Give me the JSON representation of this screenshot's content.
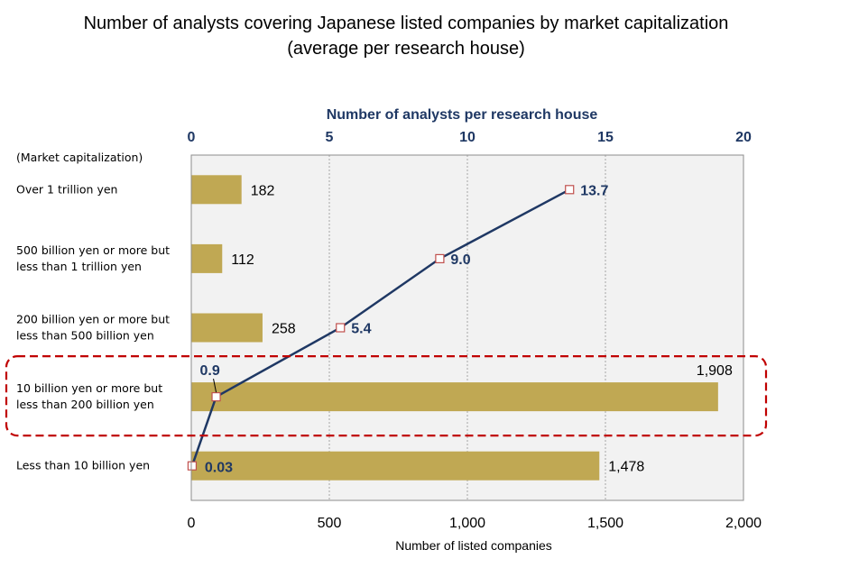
{
  "chart_data": {
    "type": "bar",
    "orientation": "horizontal",
    "title": "Number of analysts covering Japanese listed companies by market capitalization",
    "subtitle": "(average per research house)",
    "category_axis_label": "(Market capitalization)",
    "categories": [
      [
        "Over 1 trillion yen"
      ],
      [
        "500 billion yen or more but",
        "less than 1 trillion yen"
      ],
      [
        "200 billion yen or more but",
        "less than 500 billion yen"
      ],
      [
        "10 billion yen or more but",
        "less than 200 billion yen"
      ],
      [
        "Less than 10 billion yen"
      ]
    ],
    "bars": {
      "name": "Number of listed companies",
      "values": [
        182,
        112,
        258,
        1908,
        1478
      ],
      "labels": [
        "182",
        "112",
        "258",
        "1,908",
        "1,478"
      ],
      "color": "#c0a853"
    },
    "line": {
      "name": "Number of analysts per research house",
      "values": [
        13.7,
        9.0,
        5.4,
        0.9,
        0.03
      ],
      "labels": [
        "13.7",
        "9.0",
        "5.4",
        "0.9",
        "0.03"
      ],
      "color": "#1f3864",
      "marker_color": "#c0504d"
    },
    "x_bottom": {
      "label": "Number of listed companies",
      "range": [
        0,
        2000
      ],
      "ticks": [
        0,
        500,
        1000,
        1500,
        2000
      ],
      "tick_labels": [
        "0",
        "500",
        "1,000",
        "1,500",
        "2,000"
      ]
    },
    "x_top": {
      "label": "Number of analysts per research house",
      "range": [
        0,
        20
      ],
      "ticks": [
        0,
        5,
        10,
        15,
        20
      ],
      "tick_labels": [
        "0",
        "5",
        "10",
        "15",
        "20"
      ],
      "color": "#1f3864"
    },
    "grid": "vertical-dotted",
    "plot_background": "#f2f2f2",
    "highlight": {
      "category_index": 3,
      "style": "dashed",
      "color": "#c00000"
    }
  }
}
